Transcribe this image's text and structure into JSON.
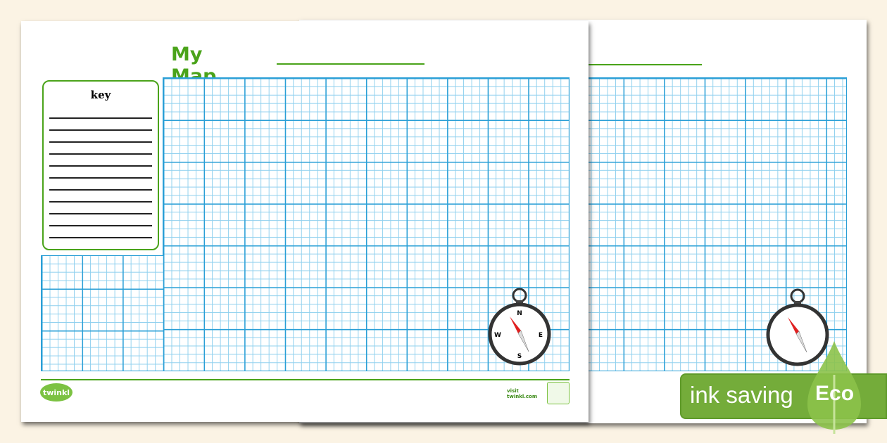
{
  "worksheet": {
    "title": "My Map of",
    "key_label": "key",
    "footer_link": "visit twinkl.com",
    "logo_text": "twinkl",
    "compass_labels": {
      "n": "N",
      "e": "E",
      "s": "S",
      "w": "W"
    }
  },
  "banner": {
    "text": "ink saving",
    "tag": "Eco"
  },
  "colors": {
    "accent": "#4aa31a",
    "grid": "#2a9fd6",
    "banner": "#74ac3a",
    "background": "#fbf3e4"
  }
}
